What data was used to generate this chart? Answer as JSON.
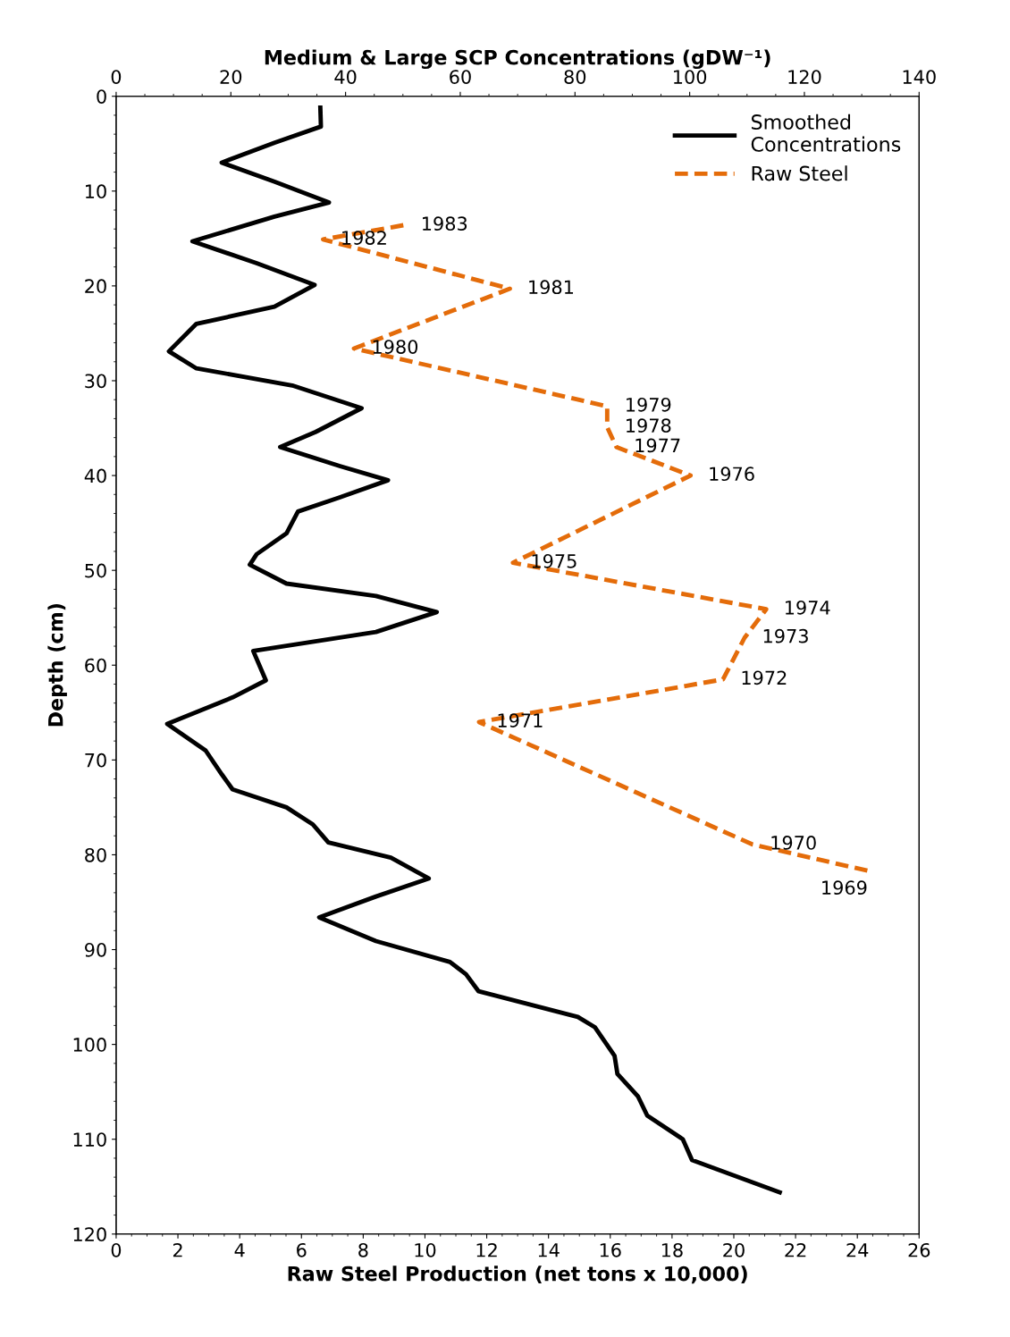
{
  "chart_data": {
    "type": "line",
    "xlabel": "Raw Steel Production (net tons x 10,000)",
    "x2label": "Medium & Large SCP Concentrations (gDW⁻¹)",
    "ylabel": "Depth (cm)",
    "xlim": [
      0,
      26
    ],
    "xticks": [
      0,
      2,
      4,
      6,
      8,
      10,
      12,
      14,
      16,
      18,
      20,
      22,
      24,
      26
    ],
    "x2lim": [
      0,
      140
    ],
    "x2ticks": [
      0,
      20,
      40,
      60,
      80,
      100,
      120,
      140
    ],
    "ylim": [
      120,
      0
    ],
    "yticks": [
      0,
      10,
      20,
      30,
      40,
      50,
      60,
      70,
      80,
      90,
      100,
      110,
      120
    ],
    "grid": false,
    "legend": "top right",
    "marker": "none",
    "series": [
      {
        "name": "Smoothed Concentrations",
        "color": "#000000",
        "axis": "x2",
        "line_style": "solid",
        "x": [
          35.6,
          35.7,
          27.6,
          18.4,
          27.6,
          37.1,
          27.6,
          13.3,
          24.5,
          34.6,
          27.6,
          14.0,
          9.2,
          14.0,
          30.7,
          42.8,
          34.8,
          28.6,
          39.0,
          47.4,
          39.0,
          31.7,
          29.7,
          24.5,
          23.3,
          29.7,
          45.3,
          55.9,
          45.3,
          23.9,
          26.1,
          20.3,
          8.9,
          15.6,
          18.4,
          20.3,
          29.7,
          34.3,
          37.0,
          47.9,
          54.5,
          45.3,
          35.4,
          45.3,
          58.2,
          61.0,
          63.2,
          80.5,
          83.5,
          86.9,
          87.4,
          91.0,
          92.6,
          98.8,
          100.4,
          115.7
        ],
        "values": [
          1.2,
          3.2,
          4.9,
          7.0,
          9.0,
          11.2,
          12.7,
          15.3,
          17.6,
          19.9,
          22.2,
          24.0,
          26.9,
          28.7,
          30.5,
          32.9,
          35.4,
          37.0,
          39.0,
          40.5,
          42.3,
          43.8,
          46.1,
          48.3,
          49.4,
          51.4,
          52.7,
          54.4,
          56.5,
          58.5,
          61.6,
          63.4,
          66.2,
          69.0,
          71.5,
          73.1,
          75.0,
          76.8,
          78.7,
          80.3,
          82.5,
          84.4,
          86.6,
          89.1,
          91.3,
          92.6,
          94.4,
          97.1,
          98.2,
          101.2,
          103.1,
          105.5,
          107.5,
          110.0,
          112.2,
          115.6
        ]
      },
      {
        "name": "Raw Steel",
        "color": "#e46c0a",
        "line_style": "dashed",
        "x": [
          9.3,
          6.7,
          12.75,
          7.7,
          15.9,
          15.9,
          16.2,
          18.6,
          12.85,
          21.05,
          20.35,
          19.65,
          11.75,
          20.6,
          24.5
        ],
        "values": [
          13.6,
          15.1,
          20.3,
          26.6,
          32.7,
          34.9,
          37.0,
          40.0,
          49.2,
          54.1,
          57.1,
          61.5,
          66.0,
          78.9,
          81.8
        ]
      }
    ],
    "annotations": [
      {
        "text": "1983",
        "x": 9.3,
        "y": 13.6
      },
      {
        "text": "1982",
        "x": 6.7,
        "y": 15.1
      },
      {
        "text": "1981",
        "x": 12.75,
        "y": 20.3
      },
      {
        "text": "1980",
        "x": 7.7,
        "y": 26.6
      },
      {
        "text": "1979",
        "x": 15.9,
        "y": 32.7
      },
      {
        "text": "1978",
        "x": 15.9,
        "y": 34.9
      },
      {
        "text": "1977",
        "x": 16.2,
        "y": 37.0
      },
      {
        "text": "1976",
        "x": 18.6,
        "y": 40.0
      },
      {
        "text": "1975",
        "x": 12.85,
        "y": 49.2
      },
      {
        "text": "1974",
        "x": 21.05,
        "y": 54.1
      },
      {
        "text": "1973",
        "x": 20.35,
        "y": 57.1
      },
      {
        "text": "1972",
        "x": 19.65,
        "y": 61.5
      },
      {
        "text": "1971",
        "x": 11.75,
        "y": 66.0
      },
      {
        "text": "1970",
        "x": 20.6,
        "y": 78.9
      },
      {
        "text": "1969",
        "x": 24.5,
        "y": 81.8
      }
    ]
  }
}
